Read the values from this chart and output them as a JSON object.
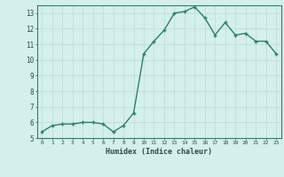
{
  "x": [
    0,
    1,
    2,
    3,
    4,
    5,
    6,
    7,
    8,
    9,
    10,
    11,
    12,
    13,
    14,
    15,
    16,
    17,
    18,
    19,
    20,
    21,
    22,
    23
  ],
  "y": [
    5.4,
    5.8,
    5.9,
    5.9,
    6.0,
    6.0,
    5.9,
    5.4,
    5.8,
    6.6,
    10.4,
    11.2,
    11.9,
    13.0,
    13.1,
    13.4,
    12.7,
    11.6,
    12.4,
    11.6,
    11.7,
    11.2,
    11.2,
    10.4
  ],
  "xlabel": "Humidex (Indice chaleur)",
  "xlim": [
    -0.5,
    23.5
  ],
  "ylim": [
    5,
    13.5
  ],
  "yticks": [
    5,
    6,
    7,
    8,
    9,
    10,
    11,
    12,
    13
  ],
  "xticks": [
    0,
    1,
    2,
    3,
    4,
    5,
    6,
    7,
    8,
    9,
    10,
    11,
    12,
    13,
    14,
    15,
    16,
    17,
    18,
    19,
    20,
    21,
    22,
    23
  ],
  "line_color": "#2e7d6e",
  "marker_color": "#2e7d6e",
  "bg_color": "#d4f0ec",
  "grid_color": "#c0ddd8",
  "axis_color": "#2e7d6e",
  "xlabel_color": "#2e4a46",
  "tick_label_color": "#2e4a46"
}
